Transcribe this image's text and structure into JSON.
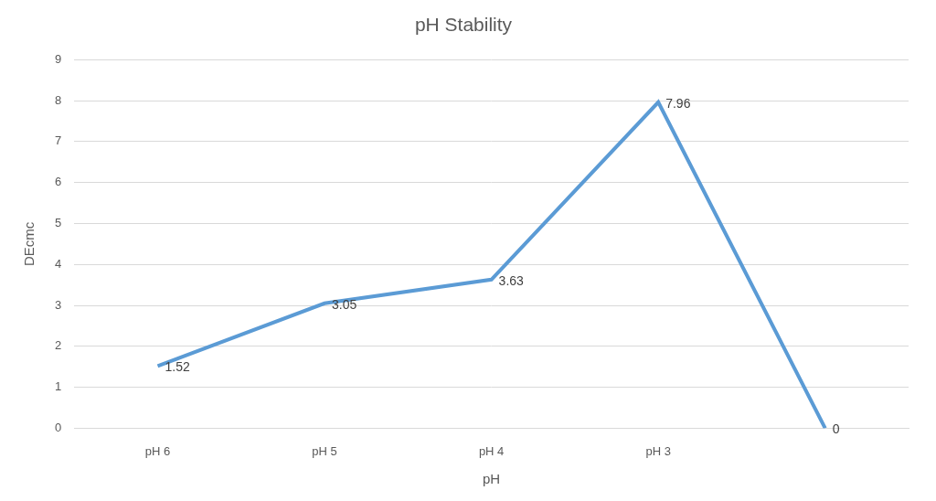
{
  "chart_data": {
    "type": "line",
    "title": "pH Stability",
    "x_label": "pH",
    "y_label": "DEcmc",
    "categories": [
      "pH 6",
      "pH 5",
      "pH 4",
      "pH 3",
      null
    ],
    "values": [
      1.52,
      3.05,
      3.63,
      7.96,
      0
    ],
    "color": "#5b9bd5",
    "ylim": [
      0,
      9
    ],
    "yticks": [
      0,
      1,
      2,
      3,
      4,
      5,
      6,
      7,
      8,
      9
    ],
    "grid": true,
    "data_labels": true,
    "marker": "none"
  }
}
